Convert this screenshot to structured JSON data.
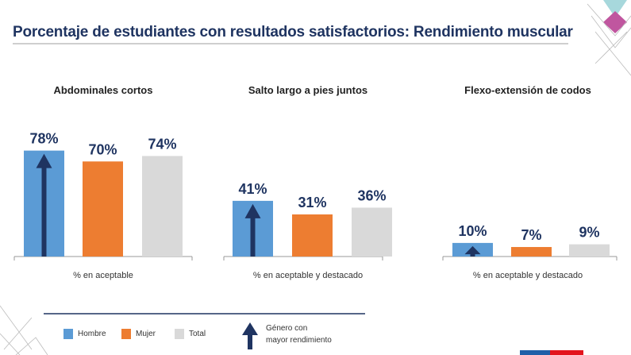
{
  "title": "Porcentaje de estudiantes con resultados satisfactorios: Rendimiento muscular",
  "colors": {
    "hombre": "#5b9bd5",
    "mujer": "#ed7d31",
    "total": "#d9d9d9",
    "arrow": "#1f3461",
    "text": "#1f3461"
  },
  "legend": {
    "hombre": "Hombre",
    "mujer": "Mujer",
    "total": "Total",
    "arrow_line1": "Género con",
    "arrow_line2": "mayor rendimiento",
    "arrow_icon": "arrow-up-icon"
  },
  "chart_data": [
    {
      "type": "bar",
      "title": "Abdominales cortos",
      "xlabel": "% en aceptable",
      "categories": [
        "Hombre",
        "Mujer",
        "Total"
      ],
      "values": [
        78,
        70,
        74
      ],
      "labels": [
        "78%",
        "70%",
        "74%"
      ],
      "highlight": "Hombre",
      "ylim": [
        0,
        100
      ]
    },
    {
      "type": "bar",
      "title": "Salto largo a pies juntos",
      "xlabel": "% en aceptable y destacado",
      "categories": [
        "Hombre",
        "Mujer",
        "Total"
      ],
      "values": [
        41,
        31,
        36
      ],
      "labels": [
        "41%",
        "31%",
        "36%"
      ],
      "highlight": "Hombre",
      "ylim": [
        0,
        100
      ]
    },
    {
      "type": "bar",
      "title": "Flexo-extensión de codos",
      "xlabel": "% en aceptable y destacado",
      "categories": [
        "Hombre",
        "Mujer",
        "Total"
      ],
      "values": [
        10,
        7,
        9
      ],
      "labels": [
        "10%",
        "7%",
        "9%"
      ],
      "highlight": "Hombre",
      "ylim": [
        0,
        100
      ]
    }
  ]
}
